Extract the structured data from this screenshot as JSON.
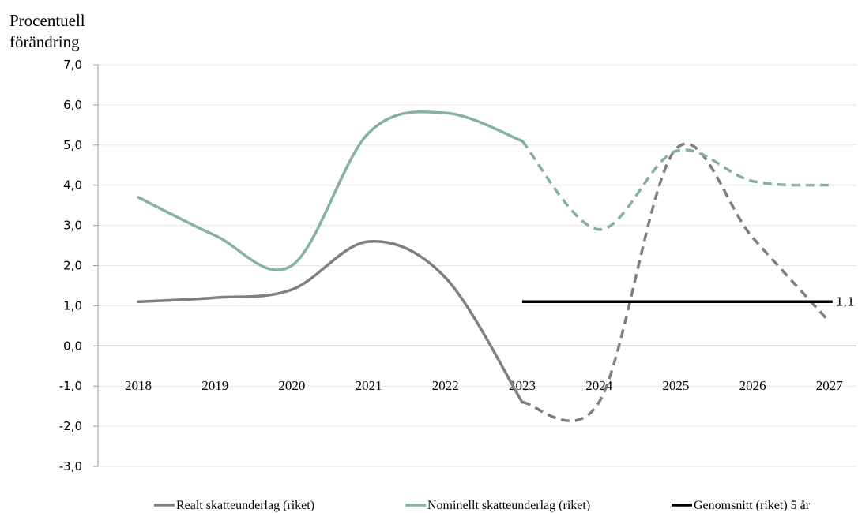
{
  "chart_data": {
    "type": "line",
    "ylabel_lines": [
      "Procentuell",
      "förändring"
    ],
    "ylim": [
      -3,
      7
    ],
    "yticks": [
      "7,0",
      "6,0",
      "5,0",
      "4,0",
      "3,0",
      "2,0",
      "1,0",
      "0,0",
      "-1,0",
      "-2,0",
      "-3,0"
    ],
    "categories": [
      "2018",
      "2019",
      "2020",
      "2021",
      "2022",
      "2023",
      "2024",
      "2025",
      "2026",
      "2027"
    ],
    "series": [
      {
        "name": "Realt skatteunderlag (riket)",
        "color": "#7f7f7f",
        "solid_until_index": 5,
        "values": [
          1.1,
          1.2,
          1.4,
          2.6,
          1.7,
          -1.4,
          -1.4,
          4.9,
          2.7,
          0.6
        ]
      },
      {
        "name": "Nominellt skatteunderlag (riket)",
        "color": "#86b0a4",
        "solid_until_index": 5,
        "values": [
          3.7,
          2.75,
          2.0,
          5.3,
          5.8,
          5.1,
          2.9,
          4.85,
          4.1,
          4.0
        ]
      },
      {
        "name": "Genomsnitt (riket) 5 år",
        "color": "#000000",
        "x_start": 5,
        "x_end": 9,
        "value": 1.1,
        "label": "1,1"
      }
    ],
    "grid": true,
    "legend": "bottom"
  }
}
